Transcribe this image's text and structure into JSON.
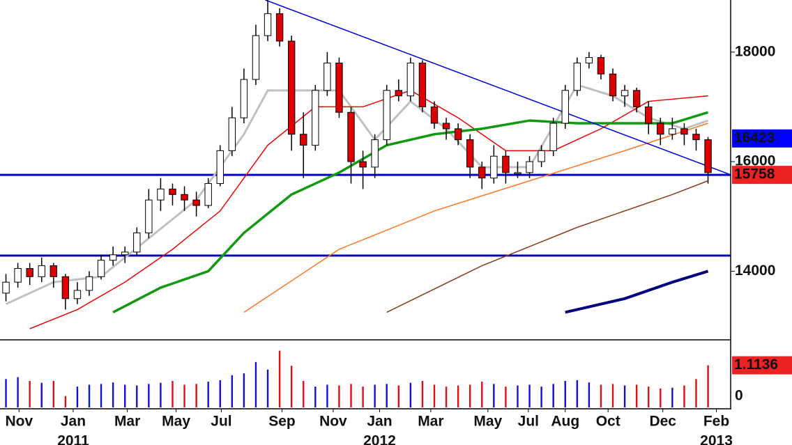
{
  "chart_data": {
    "type": "candlestick",
    "xlim": [
      -0.5,
      60.9
    ],
    "ylim": [
      12760,
      18950
    ],
    "yticks": [
      14000,
      16000,
      18000
    ],
    "xticks": [
      {
        "value": 1.1,
        "label": "Nov"
      },
      {
        "value": 5.65,
        "label": "Jan"
      },
      {
        "value": 10.2,
        "label": "Mar"
      },
      {
        "value": 14.3,
        "label": "May"
      },
      {
        "value": 18.1,
        "label": "Jul"
      },
      {
        "value": 23.2,
        "label": "Sep"
      },
      {
        "value": 27.5,
        "label": "Nov"
      },
      {
        "value": 31.4,
        "label": "Jan"
      },
      {
        "value": 35.7,
        "label": "Mar"
      },
      {
        "value": 40.5,
        "label": "May"
      },
      {
        "value": 43.9,
        "label": "Jul"
      },
      {
        "value": 47,
        "label": "Aug"
      },
      {
        "value": 50.6,
        "label": "Oct"
      },
      {
        "value": 55.2,
        "label": "Dec"
      },
      {
        "value": 59.7,
        "label": "Feb"
      }
    ],
    "year_labels": [
      {
        "value": 5.65,
        "label": "2011"
      },
      {
        "value": 31.4,
        "label": "2012"
      },
      {
        "value": 59.7,
        "label": "2013"
      }
    ],
    "up_color": "#ffffff",
    "down_color": "#dd0000",
    "open": [
      13600,
      13800,
      14050,
      13900,
      14100,
      13900,
      13500,
      13650,
      13900,
      14200,
      14300,
      14350,
      14700,
      15300,
      15500,
      15400,
      15300,
      15200,
      15600,
      16200,
      16800,
      17500,
      18300,
      18700,
      18200,
      16500,
      16300,
      17300,
      17800,
      16900,
      16000,
      15900,
      16400,
      17300,
      17200,
      17800,
      17000,
      16700,
      16600,
      16400,
      15900,
      15700,
      16100,
      15800,
      15800,
      16000,
      16200,
      16700,
      17300,
      17800,
      17900,
      17600,
      17200,
      17300,
      17000,
      16700,
      16500,
      16600,
      16500,
      16400
    ],
    "high": [
      13950,
      14150,
      14150,
      14250,
      14150,
      13950,
      13800,
      14000,
      14300,
      14450,
      14450,
      14800,
      15500,
      15700,
      15600,
      15550,
      15450,
      15700,
      16300,
      17000,
      17700,
      18500,
      18950,
      18800,
      18300,
      16900,
      17400,
      18000,
      17900,
      17000,
      16200,
      16500,
      17400,
      17500,
      17900,
      17850,
      17100,
      16800,
      16700,
      16500,
      16000,
      16300,
      16200,
      16000,
      16100,
      16300,
      16800,
      17400,
      17900,
      18000,
      17950,
      17700,
      17400,
      17350,
      17100,
      16800,
      16800,
      16700,
      16600,
      16450
    ],
    "low": [
      13450,
      13700,
      13750,
      13800,
      13700,
      13300,
      13400,
      13550,
      13850,
      14100,
      14150,
      14300,
      14600,
      15100,
      15200,
      15100,
      15000,
      15150,
      15550,
      16100,
      16700,
      17400,
      18200,
      18100,
      16200,
      15700,
      16200,
      17200,
      16800,
      15600,
      15500,
      15700,
      16300,
      17100,
      17100,
      16900,
      16600,
      16400,
      16300,
      15700,
      15500,
      15600,
      15600,
      15700,
      15700,
      15900,
      16100,
      16600,
      17200,
      17700,
      17500,
      17100,
      17000,
      16900,
      16500,
      16300,
      16400,
      16300,
      16200,
      15600
    ],
    "close": [
      13800,
      14050,
      13900,
      14100,
      13900,
      13500,
      13650,
      13900,
      14200,
      14300,
      14350,
      14700,
      15300,
      15500,
      15400,
      15300,
      15200,
      15600,
      16200,
      16800,
      17500,
      18300,
      18700,
      18200,
      16500,
      16300,
      17300,
      17800,
      16900,
      16000,
      15900,
      16400,
      17300,
      17200,
      17800,
      17000,
      16700,
      16600,
      16400,
      15900,
      15700,
      16100,
      15800,
      15800,
      16000,
      16200,
      16700,
      17300,
      17800,
      17900,
      17600,
      17200,
      17300,
      17000,
      16700,
      16500,
      16600,
      16500,
      16400,
      15800
    ],
    "moving_averages": [
      {
        "color": "#c0c0c0",
        "width": 3,
        "x": [
          0,
          4,
          8,
          12,
          16,
          20,
          22,
          25,
          28,
          31,
          34,
          37,
          40,
          44,
          48,
          51,
          54,
          57,
          59
        ],
        "values": [
          13400,
          13800,
          13900,
          14600,
          15300,
          16500,
          17300,
          17300,
          17300,
          16400,
          17100,
          16600,
          15900,
          15900,
          17400,
          17200,
          16800,
          16600,
          16750
        ]
      },
      {
        "color": "#ee0000",
        "width": 1.5,
        "x": [
          2,
          6,
          10,
          14,
          18,
          22,
          26,
          30,
          34,
          38,
          42,
          46,
          50,
          54,
          59
        ],
        "values": [
          12950,
          13300,
          13800,
          14400,
          15100,
          16300,
          17000,
          17000,
          17300,
          16800,
          16200,
          16200,
          16600,
          17100,
          17200
        ]
      },
      {
        "color": "#119911",
        "width": 3.5,
        "x": [
          9,
          13,
          17,
          20,
          24,
          28,
          32,
          36,
          40,
          44,
          48,
          52,
          56,
          59
        ],
        "values": [
          13250,
          13700,
          14000,
          14700,
          15400,
          15800,
          16300,
          16500,
          16600,
          16750,
          16700,
          16700,
          16700,
          16900
        ]
      },
      {
        "color": "#ff7722",
        "width": 1.5,
        "x": [
          20,
          28,
          36,
          44,
          52,
          59
        ],
        "values": [
          13250,
          14400,
          15100,
          15650,
          16200,
          16700
        ]
      },
      {
        "color": "#8b3a1a",
        "width": 1.5,
        "x": [
          32,
          40,
          48,
          56,
          59
        ],
        "values": [
          13250,
          14100,
          14800,
          15400,
          15650
        ]
      },
      {
        "color": "#000080",
        "width": 4,
        "x": [
          47,
          52,
          56,
          59
        ],
        "values": [
          13250,
          13500,
          13800,
          14000
        ]
      }
    ],
    "trend_line": {
      "color": "#0000dd",
      "x": [
        21.8,
        60.9
      ],
      "values": [
        18950,
        15760
      ]
    },
    "horizontal_lines": [
      {
        "value": 15758,
        "color": "#0000cc"
      },
      {
        "value": 14286,
        "color": "#0000cc"
      }
    ],
    "price_markers": [
      {
        "value": 16423,
        "color": "#0000ff"
      },
      {
        "value": 15758,
        "color": "#ee2222"
      }
    ],
    "volume": {
      "ylim": [
        0,
        1.75
      ],
      "yticks": [
        0
      ],
      "values": [
        0.75,
        0.8,
        0.7,
        0.65,
        0.7,
        0.3,
        0.55,
        0.6,
        0.62,
        0.66,
        0.6,
        0.58,
        0.62,
        0.65,
        0.7,
        0.6,
        0.62,
        0.68,
        0.72,
        0.85,
        0.9,
        1.2,
        1.0,
        1.5,
        1.1,
        0.7,
        0.55,
        0.6,
        0.58,
        0.62,
        0.55,
        0.6,
        0.62,
        0.58,
        0.65,
        0.7,
        0.6,
        0.55,
        0.58,
        0.6,
        0.68,
        0.62,
        0.55,
        0.58,
        0.6,
        0.55,
        0.62,
        0.7,
        0.72,
        0.66,
        0.6,
        0.62,
        0.58,
        0.6,
        0.55,
        0.5,
        0.52,
        0.58,
        0.75,
        1.1136
      ]
    }
  }
}
